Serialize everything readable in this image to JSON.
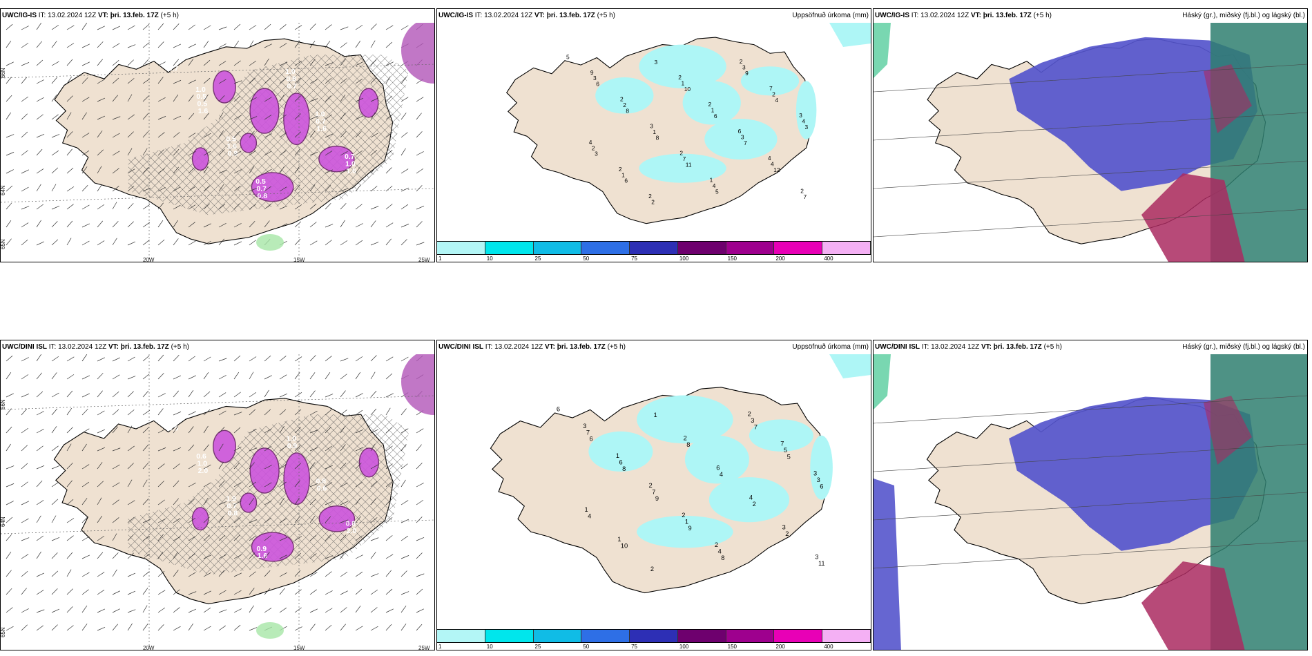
{
  "colors": {
    "land": "#efe1d1",
    "ocean": "#ffffff",
    "coast": "#000000",
    "precip_light": "#aef6f6",
    "snow_magenta": "#cc55dd",
    "cloud_high": "#2f7f70",
    "cloud_mid": "#aa2a60",
    "cloud_low": "#5555cc",
    "green_precip": "#a6e6a6"
  },
  "panels": [
    {
      "id": "p1",
      "model": "UWC/IG-IS",
      "it_label": "IT:",
      "it_value": "13.02.2024 12Z",
      "vt_label": "VT:",
      "vt_value": "þri. 13.feb. 17Z",
      "lead": "(+5 h)",
      "right_title": "",
      "lat_labels": [
        "66N",
        "64N",
        "65N"
      ],
      "lon_labels": [
        "20W",
        "15W",
        "25W"
      ],
      "values": [
        "0.7",
        "1.6",
        "0.9",
        "0.8",
        "0.7",
        "1.6",
        "1.6",
        "0.5",
        "0.5",
        "1.6",
        "0.7",
        "0.8",
        "0.7",
        "1.0",
        "0.7",
        "0.5",
        "0.5",
        "0.5",
        "1.0",
        "1.0",
        "0.7",
        "0.7",
        "1.0"
      ]
    },
    {
      "id": "p2",
      "model": "UWC/IG-IS",
      "it_label": "IT:",
      "it_value": "13.02.2024 12Z",
      "vt_label": "VT:",
      "vt_value": "þri. 13.feb. 17Z",
      "lead": "(+5 h)",
      "right_title": "Uppsöfnuð úrkoma (mm)",
      "values": [
        "5",
        "6",
        "8",
        "8",
        "11",
        "5",
        "9",
        "4",
        "3",
        "3",
        "6",
        "3",
        "10",
        "6",
        "7",
        "12",
        "7",
        "3",
        "2",
        "1",
        "7",
        "4",
        "3",
        "2",
        "4",
        "2",
        "1",
        "2",
        "1",
        "1",
        "3",
        "4",
        "2",
        "9",
        "2",
        "3",
        "2",
        "1",
        "2",
        "7",
        "3",
        "4",
        "2",
        "2",
        "2",
        "2",
        "6",
        "4"
      ],
      "colorbar": [
        "1",
        "10",
        "25",
        "50",
        "75",
        "100",
        "150",
        "200",
        "400"
      ]
    },
    {
      "id": "p3",
      "model": "UWC/IG-IS",
      "it_label": "IT:",
      "it_value": "13.02.2024 12Z",
      "vt_label": "VT:",
      "vt_value": "þri. 13.feb. 17Z",
      "lead": "(+5 h)",
      "right_title": "Háský (gr.), miðský (fj.bl.) og lágský (bl.)"
    },
    {
      "id": "p4",
      "model": "UWC/DINI ISL",
      "it_label": "IT:",
      "it_value": "13.02.2024 12Z",
      "vt_label": "VT:",
      "vt_value": "þri. 13.feb. 17Z",
      "lead": "(+5 h)",
      "right_title": "",
      "lat_labels": [
        "66N",
        "64N",
        "65N"
      ],
      "lon_labels": [
        "20W",
        "15W",
        "25W"
      ],
      "values": [
        "0.5",
        "2.0",
        "0.8",
        "1.6",
        "0.9",
        "0.6",
        "2.0",
        "0.6",
        "1.0",
        "0.7",
        "0.9",
        "1.0",
        "0.8",
        "0.8",
        "1.0",
        "0.6",
        "1.9"
      ]
    },
    {
      "id": "p5",
      "model": "UWC/DINI ISL",
      "it_label": "IT:",
      "it_value": "13.02.2024 12Z",
      "vt_label": "VT:",
      "vt_value": "þri. 13.feb. 17Z",
      "lead": "(+5 h)",
      "right_title": "Uppsöfnuð úrkoma (mm)",
      "values": [
        "6",
        "6",
        "8",
        "9",
        "9",
        "8",
        "7",
        "5",
        "6",
        "4",
        "10",
        "1",
        "8",
        "4",
        "2",
        "2",
        "11",
        "7",
        "6",
        "7",
        "1",
        "4",
        "3",
        "5",
        "3",
        "1",
        "1",
        "2",
        "2",
        "6",
        "4",
        "3",
        "3",
        "3",
        "1",
        "2",
        "2",
        "2",
        "2",
        "7",
        "3"
      ],
      "colorbar": [
        "1",
        "10",
        "25",
        "50",
        "75",
        "100",
        "150",
        "200",
        "400"
      ]
    },
    {
      "id": "p6",
      "model": "UWC/DINI ISL",
      "it_label": "IT:",
      "it_value": "13.02.2024 12Z",
      "vt_label": "VT:",
      "vt_value": "þri. 13.feb. 17Z",
      "lead": "(+5 h)",
      "right_title": "Háský (gr.), miðský (fj.bl.) og lágský (bl.)"
    }
  ],
  "colorbar_colors": [
    "#b3f6f6",
    "#00e6ec",
    "#10bce6",
    "#2e6fe6",
    "#2d2fb5",
    "#6e006e",
    "#9e008e",
    "#e800b6",
    "#f4b0f4"
  ]
}
